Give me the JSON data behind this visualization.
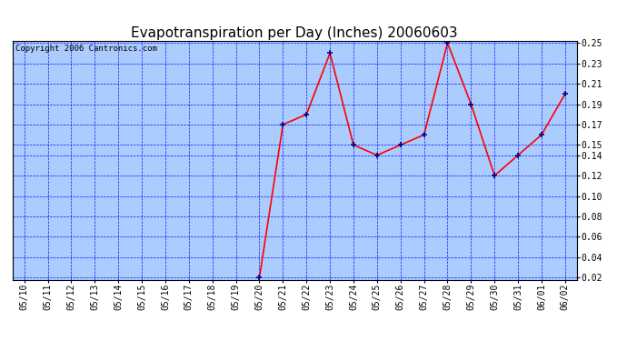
{
  "title": "Evapotranspiration per Day (Inches) 20060603",
  "copyright": "Copyright 2006 Cantronics.com",
  "x_labels": [
    "05/10",
    "05/11",
    "05/12",
    "05/13",
    "05/14",
    "05/15",
    "05/16",
    "05/17",
    "05/18",
    "05/19",
    "05/20",
    "05/21",
    "05/22",
    "05/23",
    "05/24",
    "05/25",
    "05/26",
    "05/27",
    "05/28",
    "05/29",
    "05/30",
    "05/31",
    "06/01",
    "06/02"
  ],
  "y_data": [
    null,
    null,
    null,
    null,
    null,
    null,
    null,
    null,
    null,
    null,
    0.02,
    0.17,
    0.18,
    0.24,
    0.15,
    0.14,
    0.15,
    0.16,
    0.25,
    0.19,
    0.12,
    0.14,
    0.16,
    0.2
  ],
  "y_min": 0.02,
  "y_max": 0.25,
  "y_ticks": [
    0.02,
    0.04,
    0.06,
    0.08,
    0.1,
    0.12,
    0.14,
    0.15,
    0.17,
    0.19,
    0.21,
    0.23,
    0.25
  ],
  "line_color": "red",
  "marker_color": "darkblue",
  "bg_color": "#aaccff",
  "title_color": "black",
  "grid_color": "blue",
  "title_fontsize": 11,
  "tick_fontsize": 7,
  "copyright_fontsize": 6.5
}
